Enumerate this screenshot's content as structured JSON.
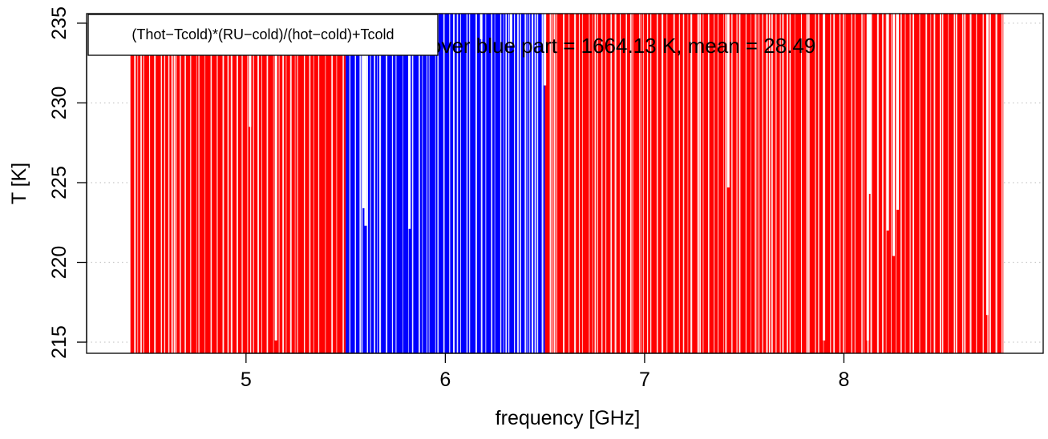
{
  "chart_data": {
    "type": "bar",
    "xlabel": "frequency [GHz]",
    "ylabel": "T [K]",
    "xlim": [
      4.2,
      9.0
    ],
    "ylim": [
      214.3,
      235.6
    ],
    "x_ticks": [
      "5",
      "6",
      "7",
      "8"
    ],
    "y_ticks": [
      "215",
      "220",
      "225",
      "230",
      "235"
    ],
    "grid": "dotted",
    "annotation": "over blue part = 1664.13 K, mean = 28.49",
    "legend": {
      "position": "top-left",
      "entries": [
        "(Thot−Tcold)*(RU−cold)/(hot−cold)+Tcold"
      ]
    },
    "series": [
      {
        "color": "#ff0000",
        "x_range": [
          4.42,
          5.5
        ]
      },
      {
        "color": "#0000ff",
        "x_range": [
          5.5,
          6.5
        ]
      },
      {
        "color": "#ff0000",
        "x_range": [
          6.5,
          8.8
        ]
      }
    ],
    "notable_dips": [
      {
        "x": 5.02,
        "y": 228.5
      },
      {
        "x": 5.15,
        "y": 215.1
      },
      {
        "x": 5.59,
        "y": 223.4
      },
      {
        "x": 5.6,
        "y": 222.3
      },
      {
        "x": 5.82,
        "y": 222.1
      },
      {
        "x": 6.18,
        "y": 234.0
      },
      {
        "x": 6.33,
        "y": 233.6
      },
      {
        "x": 6.5,
        "y": 231.1
      },
      {
        "x": 7.42,
        "y": 224.7
      },
      {
        "x": 7.9,
        "y": 215.1
      },
      {
        "x": 8.13,
        "y": 224.3
      },
      {
        "x": 8.12,
        "y": 215.1
      },
      {
        "x": 8.22,
        "y": 222.0
      },
      {
        "x": 8.25,
        "y": 220.4
      },
      {
        "x": 8.27,
        "y": 223.3
      },
      {
        "x": 8.72,
        "y": 216.7
      }
    ]
  }
}
